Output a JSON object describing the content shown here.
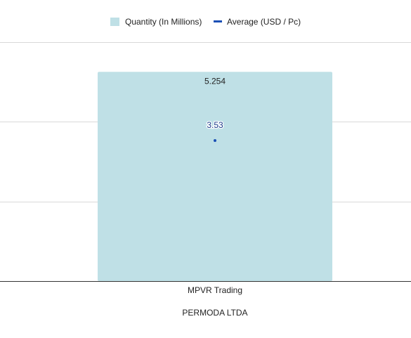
{
  "chart_data": {
    "type": "bar",
    "categories": [
      "MPVR Trading"
    ],
    "series": [
      {
        "name": "Quantity (In Millions)",
        "kind": "bar",
        "values": [
          5.254
        ],
        "data_labels": [
          "5.254"
        ],
        "color": "#bfe0e6"
      },
      {
        "name": "Average (USD / Pc)",
        "kind": "line",
        "values": [
          3.53
        ],
        "data_labels": [
          "3.53"
        ],
        "color": "#1a4fb5"
      }
    ],
    "legend": {
      "position": "top-center"
    },
    "axis_title_x": "PERMODA LTDA",
    "ylim_bar": [
      0,
      6
    ],
    "ylim_line": [
      0,
      6
    ],
    "grid": true
  }
}
